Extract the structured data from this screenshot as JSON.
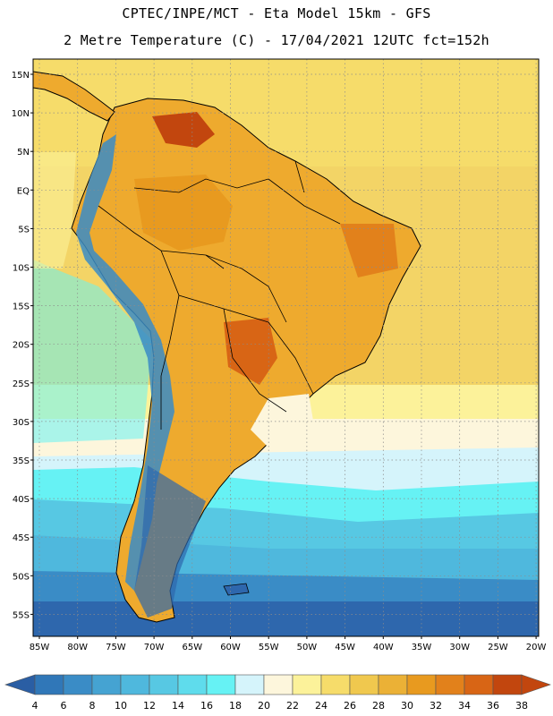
{
  "header": {
    "title_line1": "CPTEC/INPE/MCT -  Eta Model 15km - GFS",
    "title_line2": "2 Metre Temperature (C) - 17/04/2021 12UTC fct=152h"
  },
  "map": {
    "lat_labels": [
      "15N",
      "10N",
      "5N",
      "EQ",
      "5S",
      "10S",
      "15S",
      "20S",
      "25S",
      "30S",
      "35S",
      "40S",
      "45S",
      "50S",
      "55S"
    ],
    "lon_labels": [
      "85W",
      "80W",
      "75W",
      "70W",
      "65W",
      "60W",
      "55W",
      "50W",
      "45W",
      "40W",
      "35W",
      "30W",
      "25W",
      "20W"
    ]
  },
  "colorbar": {
    "labels": [
      "4",
      "6",
      "8",
      "10",
      "12",
      "14",
      "16",
      "18",
      "20",
      "22",
      "24",
      "26",
      "28",
      "30",
      "32",
      "34",
      "36",
      "38"
    ],
    "colors": [
      "#2a5ea4",
      "#3077b8",
      "#3a8cc6",
      "#45a3d2",
      "#4fb8dd",
      "#57c8e3",
      "#5fdcec",
      "#66f2f4",
      "#d5f4fb",
      "#fdf6dc",
      "#fcf29a",
      "#f6dc6a",
      "#f0c84e",
      "#ebb136",
      "#e89a1f",
      "#e2811b",
      "#d86515",
      "#c2460e"
    ]
  },
  "colors": {
    "ocean_cold": "#2e67ad",
    "ocean_cool": "#4fb8dd",
    "ocean_warm": "#f3d466",
    "land_hot": "#e8a12c",
    "land_very_hot": "#c65a18",
    "boundary": "#000000"
  }
}
